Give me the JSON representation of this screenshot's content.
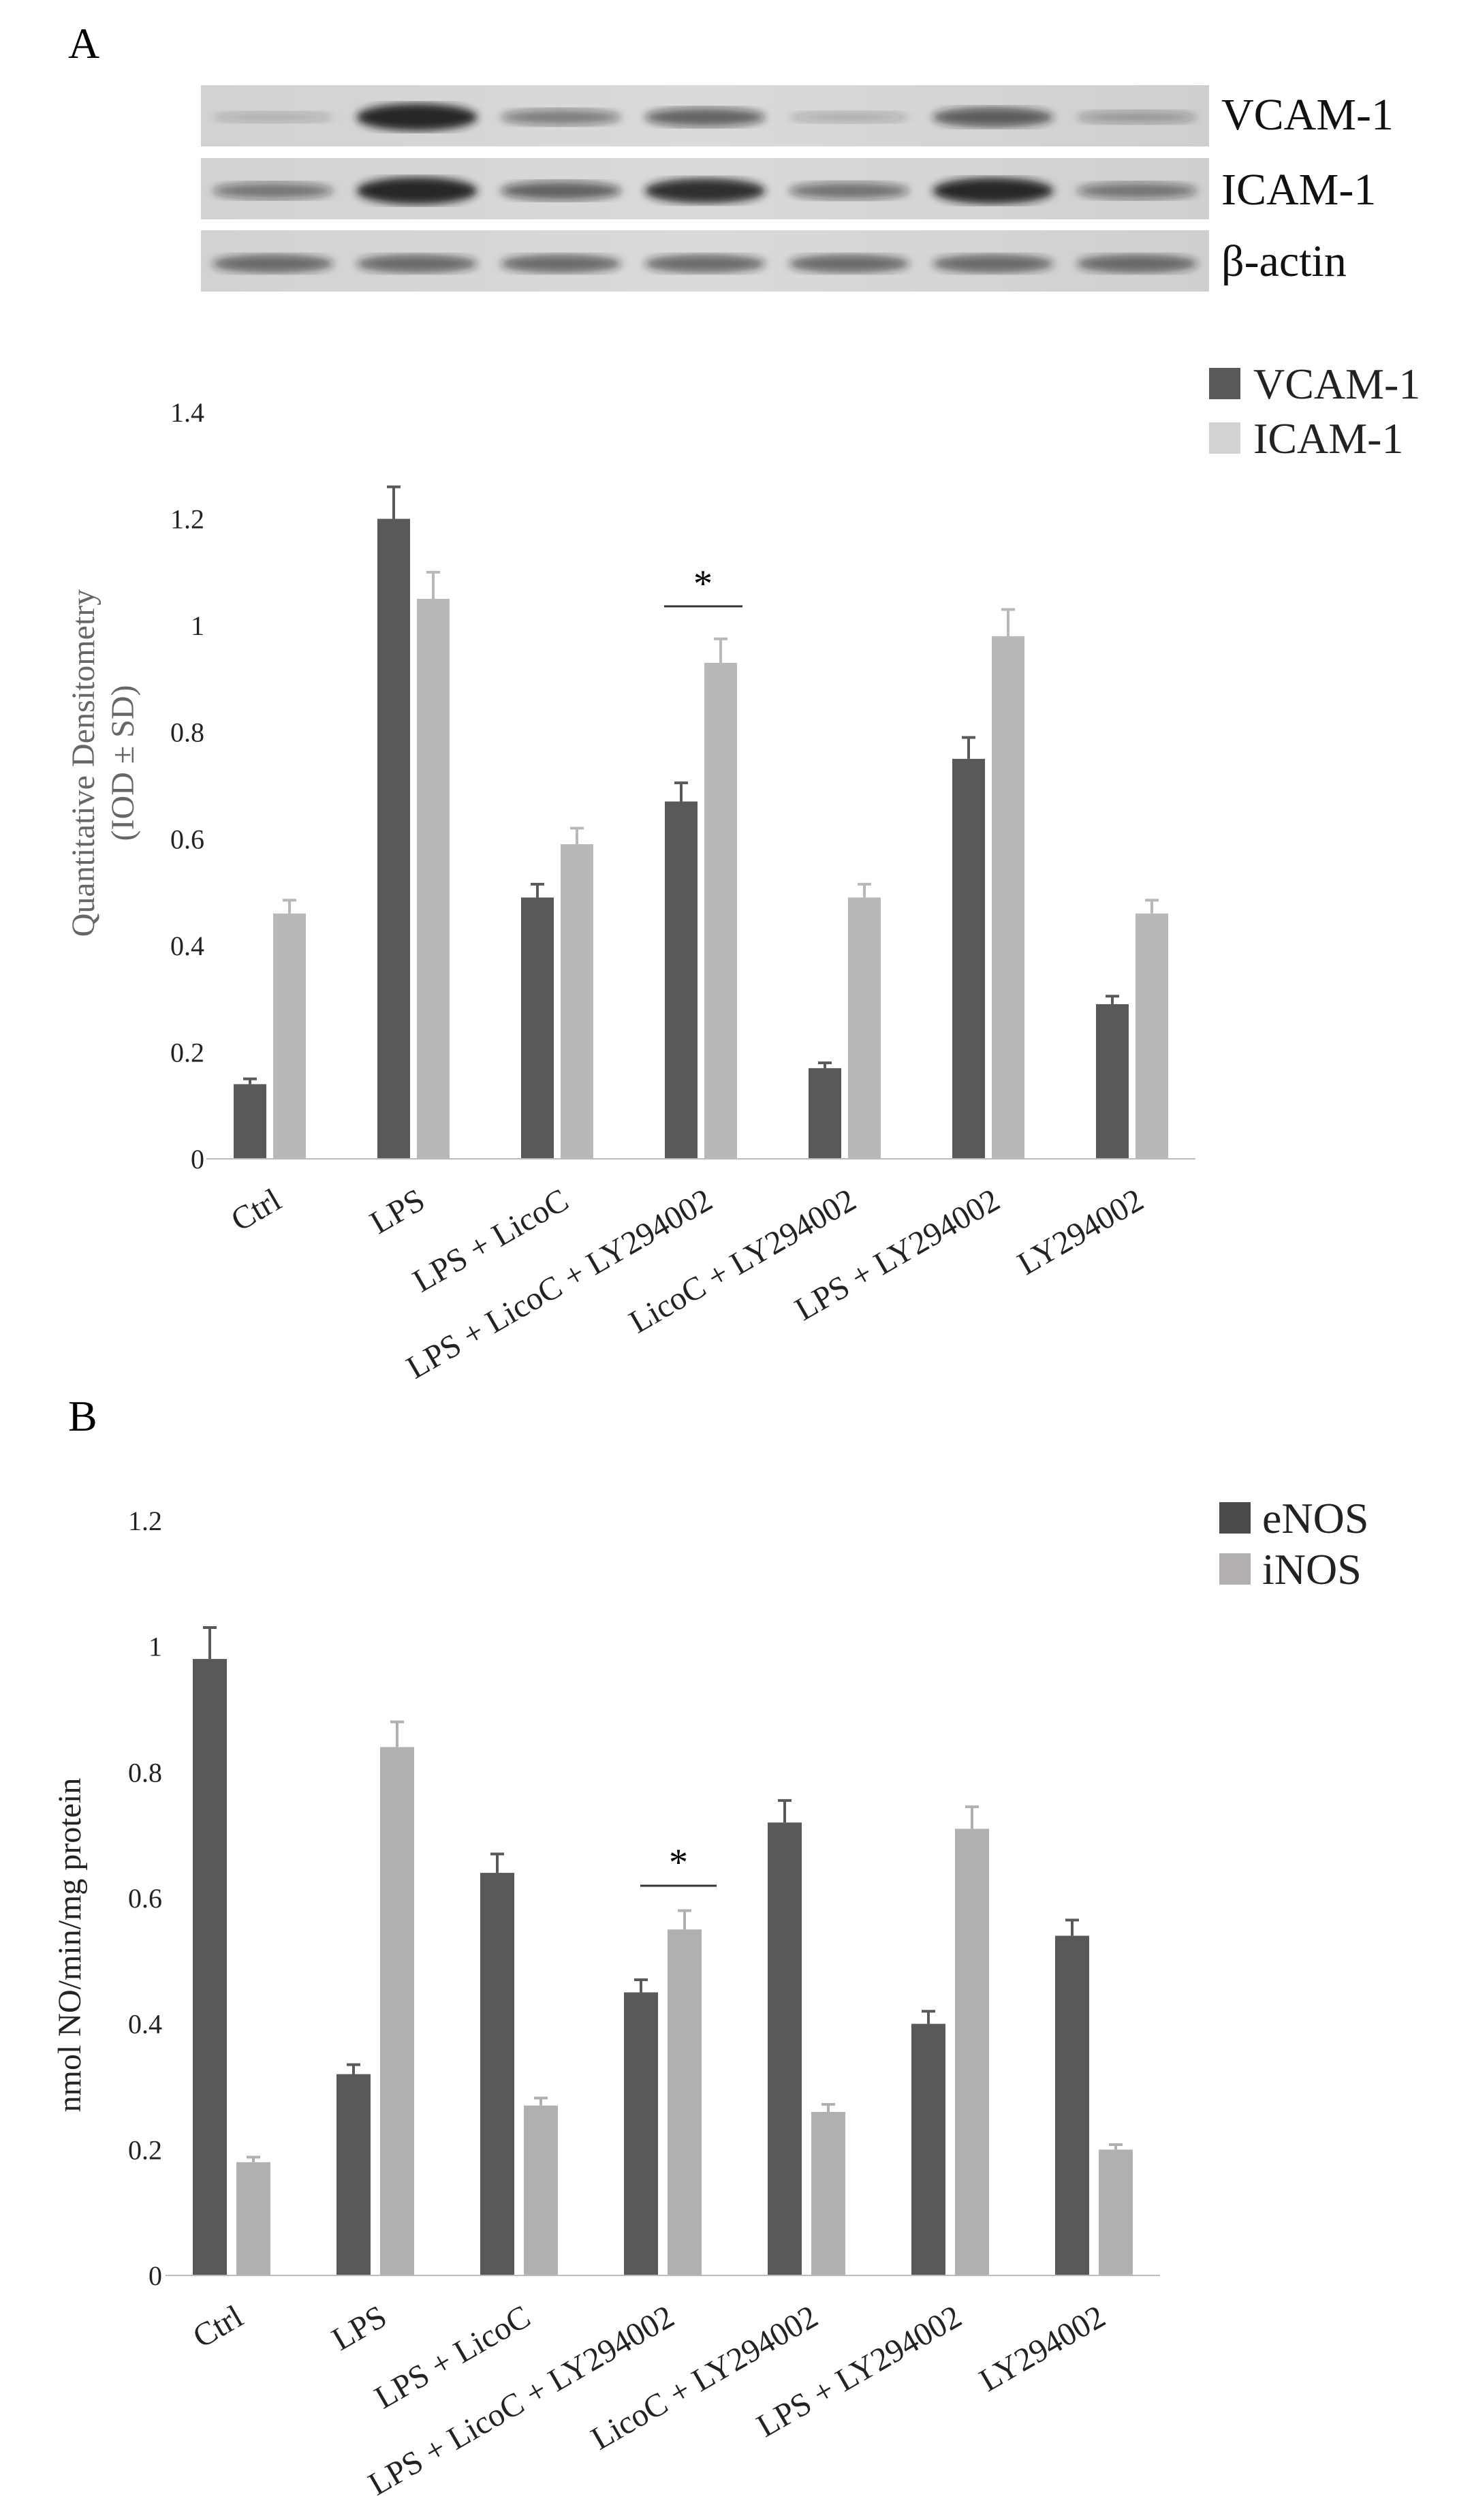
{
  "panels": [
    {
      "letter": "A"
    },
    {
      "letter": "B"
    }
  ],
  "blot": {
    "labels": [
      "VCAM-1",
      "ICAM-1",
      "β-actin"
    ],
    "lanes": 7
  },
  "colors": {
    "dark": "#595959",
    "light_a": "#b8b8b8",
    "light_b": "#b0b0b0"
  },
  "chart_data": [
    {
      "type": "bar",
      "panel": "A",
      "title": "",
      "ylabel": "Quantitative Densitometry",
      "ylabel2": "(IOD ± SD)",
      "xlabel": "",
      "ylim": [
        0,
        1.4
      ],
      "yticks": [
        "0",
        "0.2",
        "0.4",
        "0.6",
        "0.8",
        "1",
        "1.2",
        "1.4"
      ],
      "grid": false,
      "legend_position": "top-right",
      "categories": [
        "Ctrl",
        "LPS",
        "LPS + LicoC",
        "LPS + LicoC + LY294002",
        "LicoC + LY294002",
        "LPS + LY294002",
        "LY294002"
      ],
      "series": [
        {
          "name": "VCAM-1",
          "values": [
            0.14,
            1.2,
            0.49,
            0.67,
            0.17,
            0.75,
            0.29
          ],
          "errors": [
            0.01,
            0.06,
            0.025,
            0.035,
            0.01,
            0.04,
            0.015
          ]
        },
        {
          "name": "ICAM-1",
          "values": [
            0.46,
            1.05,
            0.59,
            0.93,
            0.49,
            0.98,
            0.46
          ],
          "errors": [
            0.025,
            0.05,
            0.03,
            0.045,
            0.025,
            0.05,
            0.025
          ]
        }
      ],
      "significance": {
        "category_index": 3,
        "label": "*"
      }
    },
    {
      "type": "bar",
      "panel": "B",
      "title": "",
      "ylabel": "nmol NO/min/mg protein",
      "xlabel": "",
      "ylim": [
        0,
        1.2
      ],
      "yticks": [
        "0",
        "0.2",
        "0.4",
        "0.6",
        "0.8",
        "1",
        "1.2"
      ],
      "grid": false,
      "legend_position": "top-right",
      "categories": [
        "Ctrl",
        "LPS",
        "LPS + LicoC",
        "LPS + LicoC + LY294002",
        "LicoC + LY294002",
        "LPS + LY294002",
        "LY294002"
      ],
      "series": [
        {
          "name": "eNOS",
          "values": [
            0.98,
            0.32,
            0.64,
            0.45,
            0.72,
            0.4,
            0.54
          ],
          "errors": [
            0.05,
            0.015,
            0.03,
            0.02,
            0.035,
            0.02,
            0.025
          ]
        },
        {
          "name": "iNOS",
          "values": [
            0.18,
            0.84,
            0.27,
            0.55,
            0.26,
            0.71,
            0.2
          ],
          "errors": [
            0.008,
            0.04,
            0.012,
            0.03,
            0.012,
            0.035,
            0.008
          ]
        }
      ],
      "significance": {
        "category_index": 3,
        "label": "*"
      }
    }
  ]
}
